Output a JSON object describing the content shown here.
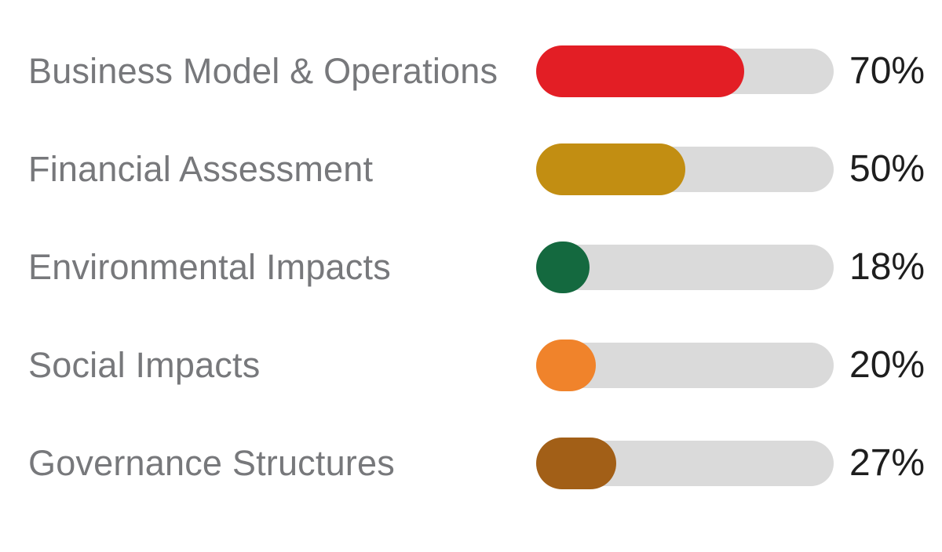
{
  "chart_data": {
    "type": "bar",
    "orientation": "horizontal",
    "title": "",
    "xlabel": "",
    "ylabel": "",
    "xlim": [
      0,
      100
    ],
    "unit": "%",
    "grid": false,
    "legend": false,
    "categories": [
      "Business Model & Operations",
      "Financial Assessment",
      "Environmental Impacts",
      "Social Impacts",
      "Governance Structures"
    ],
    "values": [
      70,
      50,
      18,
      20,
      27
    ],
    "value_labels": [
      "70%",
      "50%",
      "18%",
      "20%",
      "27%"
    ],
    "bar_colors": [
      "#e31e25",
      "#c28e12",
      "#14693f",
      "#f0832b",
      "#a25f17"
    ],
    "track_color": "#dadada",
    "label_color": "#77787b",
    "value_text_color": "#1e1e1e"
  },
  "rows": [
    {
      "label": "Business Model & Operations",
      "percent_label": "70%"
    },
    {
      "label": "Financial Assessment",
      "percent_label": "50%"
    },
    {
      "label": "Environmental Impacts",
      "percent_label": "18%"
    },
    {
      "label": "Social Impacts",
      "percent_label": "20%"
    },
    {
      "label": "Governance Structures",
      "percent_label": "27%"
    }
  ]
}
